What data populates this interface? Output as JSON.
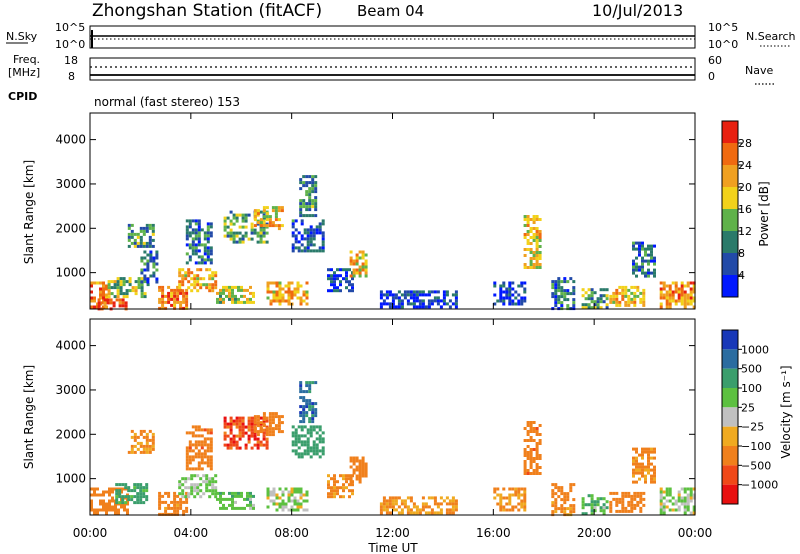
{
  "header": {
    "station": "Zhongshan Station (fitACF)",
    "beam": "Beam 04",
    "date": "10/Jul/2013"
  },
  "strips": {
    "nsky": {
      "label": "N.Sky",
      "tick_top": "10^5",
      "tick_bottom": "10^0"
    },
    "nsearch": {
      "label": "N.Search",
      "tick_top": "10^5",
      "tick_bottom": "10^0"
    },
    "freq": {
      "label_line1": "Freq.",
      "label_line2": "[MHz]",
      "tick_top": "18",
      "tick_bottom": "8"
    },
    "nave": {
      "label": "Nave",
      "tick_top": "60",
      "tick_bottom": "0"
    },
    "cpid": {
      "label": "CPID",
      "text": "normal (fast stereo) 153"
    }
  },
  "colors": {
    "power": [
      "#0018ff",
      "#224aa8",
      "#2a7a6a",
      "#5fb24a",
      "#f2d21a",
      "#f0a020",
      "#f06a10",
      "#e82010"
    ],
    "velocity": [
      "#e81010",
      "#f04818",
      "#f0801c",
      "#f0aa20",
      "#c0c0c0",
      "#5cc040",
      "#3a9e6c",
      "#2a6ca0",
      "#1838b8"
    ],
    "axis": "#000000"
  },
  "chart_data": [
    {
      "type": "heatmap",
      "name": "power",
      "xlabel": "",
      "ylabel": "Slant Range [km]",
      "xlim": [
        0,
        24
      ],
      "ylim": [
        180,
        4600
      ],
      "yticks": [
        1000,
        2000,
        3000,
        4000
      ],
      "colorbar": {
        "label": "Power [dB]",
        "ticks": [
          "4",
          "8",
          "12",
          "16",
          "20",
          "24",
          "28"
        ],
        "range": [
          0,
          30
        ]
      },
      "echo_regions": [
        {
          "t": [
            0.0,
            0.7
          ],
          "r": [
            200,
            800
          ],
          "value": 24
        },
        {
          "t": [
            0.3,
            1.4
          ],
          "r": [
            200,
            420
          ],
          "value": 27
        },
        {
          "t": [
            0.7,
            2.3
          ],
          "r": [
            450,
            900
          ],
          "value": 14
        },
        {
          "t": [
            1.5,
            2.5
          ],
          "r": [
            1600,
            2100
          ],
          "value": 10
        },
        {
          "t": [
            2.0,
            2.6
          ],
          "r": [
            800,
            1500
          ],
          "value": 8
        },
        {
          "t": [
            2.7,
            3.8
          ],
          "r": [
            200,
            700
          ],
          "value": 24
        },
        {
          "t": [
            3.5,
            5.0
          ],
          "r": [
            600,
            1100
          ],
          "value": 20
        },
        {
          "t": [
            3.8,
            4.8
          ],
          "r": [
            1200,
            2200
          ],
          "value": 8
        },
        {
          "t": [
            5.0,
            6.5
          ],
          "r": [
            300,
            700
          ],
          "value": 16
        },
        {
          "t": [
            5.3,
            7.0
          ],
          "r": [
            1700,
            2400
          ],
          "value": 12
        },
        {
          "t": [
            6.5,
            7.6
          ],
          "r": [
            2000,
            2500
          ],
          "value": 19
        },
        {
          "t": [
            7.0,
            8.6
          ],
          "r": [
            300,
            800
          ],
          "value": 20
        },
        {
          "t": [
            8.0,
            9.2
          ],
          "r": [
            1500,
            2200
          ],
          "value": 6
        },
        {
          "t": [
            8.3,
            9.0
          ],
          "r": [
            2300,
            3200
          ],
          "value": 10
        },
        {
          "t": [
            9.4,
            10.4
          ],
          "r": [
            600,
            1100
          ],
          "value": 5
        },
        {
          "t": [
            10.3,
            11.0
          ],
          "r": [
            900,
            1500
          ],
          "value": 18
        },
        {
          "t": [
            11.5,
            14.5
          ],
          "r": [
            200,
            600
          ],
          "value": 4
        },
        {
          "t": [
            16.0,
            17.3
          ],
          "r": [
            300,
            800
          ],
          "value": 5
        },
        {
          "t": [
            17.2,
            17.8
          ],
          "r": [
            1100,
            2300
          ],
          "value": 18
        },
        {
          "t": [
            18.3,
            19.2
          ],
          "r": [
            200,
            900
          ],
          "value": 8
        },
        {
          "t": [
            19.5,
            20.5
          ],
          "r": [
            200,
            650
          ],
          "value": 12
        },
        {
          "t": [
            20.6,
            22.0
          ],
          "r": [
            250,
            700
          ],
          "value": 18
        },
        {
          "t": [
            21.5,
            22.4
          ],
          "r": [
            900,
            1700
          ],
          "value": 8
        },
        {
          "t": [
            22.6,
            24.0
          ],
          "r": [
            200,
            800
          ],
          "value": 22
        }
      ]
    },
    {
      "type": "heatmap",
      "name": "velocity",
      "xlabel": "Time UT",
      "ylabel": "Slant Range [km]",
      "xlim": [
        0,
        24
      ],
      "ylim": [
        180,
        4600
      ],
      "yticks": [
        1000,
        2000,
        3000,
        4000
      ],
      "xticks": [
        "00:00",
        "04:00",
        "08:00",
        "12:00",
        "16:00",
        "20:00",
        "00:00"
      ],
      "colorbar": {
        "label": "Velocity [m s⁻¹]",
        "ticks": [
          "1000",
          "500",
          "100",
          "25",
          "−25",
          "−100",
          "−500",
          "−1000"
        ],
        "range": [
          -1000,
          1000
        ]
      },
      "echo_regions": [
        {
          "t": [
            0.0,
            1.5
          ],
          "r": [
            200,
            800
          ],
          "value": -250
        },
        {
          "t": [
            1.0,
            2.3
          ],
          "r": [
            450,
            900
          ],
          "value": 150
        },
        {
          "t": [
            1.5,
            2.5
          ],
          "r": [
            1600,
            2100
          ],
          "value": -120
        },
        {
          "t": [
            2.7,
            3.8
          ],
          "r": [
            200,
            700
          ],
          "value": -160
        },
        {
          "t": [
            3.5,
            5.0
          ],
          "r": [
            600,
            1100
          ],
          "value": 40
        },
        {
          "t": [
            3.8,
            4.8
          ],
          "r": [
            1200,
            2200
          ],
          "value": -350
        },
        {
          "t": [
            5.0,
            6.5
          ],
          "r": [
            300,
            700
          ],
          "value": 60
        },
        {
          "t": [
            5.3,
            7.0
          ],
          "r": [
            1700,
            2400
          ],
          "value": -700
        },
        {
          "t": [
            6.5,
            7.6
          ],
          "r": [
            2000,
            2500
          ],
          "value": -300
        },
        {
          "t": [
            7.0,
            8.6
          ],
          "r": [
            300,
            800
          ],
          "value": 20
        },
        {
          "t": [
            8.0,
            9.2
          ],
          "r": [
            1500,
            2200
          ],
          "value": 250
        },
        {
          "t": [
            8.3,
            9.0
          ],
          "r": [
            2300,
            3200
          ],
          "value": 600
        },
        {
          "t": [
            9.4,
            10.4
          ],
          "r": [
            600,
            1100
          ],
          "value": -150
        },
        {
          "t": [
            10.3,
            11.0
          ],
          "r": [
            900,
            1500
          ],
          "value": -300
        },
        {
          "t": [
            11.5,
            14.5
          ],
          "r": [
            200,
            600
          ],
          "value": -100
        },
        {
          "t": [
            16.0,
            17.3
          ],
          "r": [
            300,
            800
          ],
          "value": -120
        },
        {
          "t": [
            17.2,
            17.8
          ],
          "r": [
            1100,
            2300
          ],
          "value": -350
        },
        {
          "t": [
            18.3,
            19.2
          ],
          "r": [
            200,
            900
          ],
          "value": -150
        },
        {
          "t": [
            19.5,
            20.5
          ],
          "r": [
            200,
            650
          ],
          "value": 80
        },
        {
          "t": [
            20.6,
            22.0
          ],
          "r": [
            250,
            700
          ],
          "value": -200
        },
        {
          "t": [
            21.5,
            22.4
          ],
          "r": [
            900,
            1700
          ],
          "value": -120
        },
        {
          "t": [
            22.6,
            24.0
          ],
          "r": [
            200,
            800
          ],
          "value": 20
        }
      ]
    }
  ]
}
